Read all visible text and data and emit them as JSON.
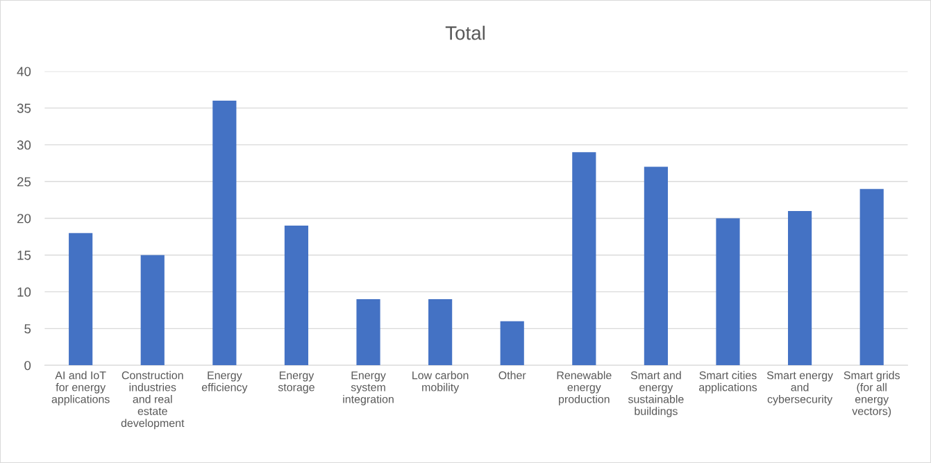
{
  "chart_data": {
    "type": "bar",
    "title": "Total",
    "categories": [
      "AI and IoT for energy applications",
      "Construction industries and real estate development",
      "Energy efficiency",
      "Energy storage",
      "Energy system integration",
      "Low carbon mobility",
      "Other",
      "Renewable energy production",
      "Smart and energy sustainable buildings",
      "Smart cities applications",
      "Smart energy and cybersecurity",
      "Smart grids (for all energy vectors)"
    ],
    "values": [
      18,
      15,
      36,
      19,
      9,
      9,
      6,
      29,
      27,
      20,
      21,
      24
    ],
    "color": "#4472c4",
    "ylim": [
      0,
      40
    ],
    "yticks": [
      0,
      5,
      10,
      15,
      20,
      25,
      30,
      35,
      40
    ],
    "grid": "y"
  }
}
